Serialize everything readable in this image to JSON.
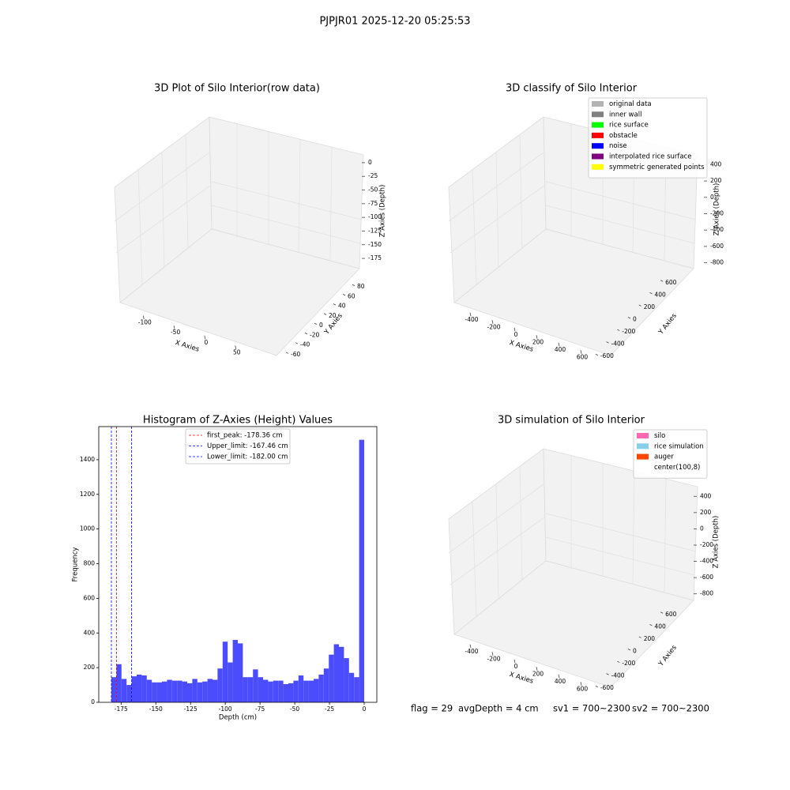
{
  "title": "PJPJR01 2025-12-20 05:25:53",
  "chart_data": [
    {
      "type": "scatter3d",
      "title": "3D Plot of Silo Interior(row data)",
      "xlabel": "X Axies",
      "ylabel": "Y Axies",
      "zlabel": "Z Axies (Depth)",
      "xlim": [
        -130,
        80
      ],
      "xticks": [
        -100,
        -50,
        0,
        50
      ],
      "ylim": [
        -65,
        90
      ],
      "yticks": [
        -60,
        -40,
        -20,
        0,
        20,
        40,
        60,
        80
      ],
      "zlim": [
        -185,
        10
      ],
      "zticks": [
        0,
        -25,
        -50,
        -75,
        -100,
        -125,
        -150,
        -175
      ]
    },
    {
      "type": "classify3d",
      "title": "3D classify of Silo Interior",
      "xlabel": "X Axies",
      "ylabel": "Y Axies",
      "zlabel": "Z Axies (Depth)",
      "xlim": [
        -500,
        700
      ],
      "xticks": [
        -400,
        -200,
        0,
        200,
        400,
        600
      ],
      "ylim": [
        -700,
        700
      ],
      "yticks": [
        -600,
        -400,
        -200,
        0,
        200,
        400,
        600
      ],
      "zlim": [
        -900,
        500
      ],
      "zticks": [
        -800,
        -600,
        -400,
        -200,
        0,
        200,
        400
      ],
      "legend": [
        {
          "name": "original data",
          "color": "#b3b3b3"
        },
        {
          "name": "inner wall",
          "color": "#808080"
        },
        {
          "name": "rice surface",
          "color": "#00ff00"
        },
        {
          "name": "obstacle",
          "color": "#ff0000"
        },
        {
          "name": "noise",
          "color": "#0000ff"
        },
        {
          "name": "interpolated rice surface",
          "color": "#800080"
        },
        {
          "name": "symmetric generated points",
          "color": "#ffff00"
        }
      ]
    },
    {
      "type": "histogram",
      "title": "Histogram of Z-Axies (Height) Values",
      "xlabel": "Depth (cm)",
      "ylabel": "Frequency",
      "color": "#4c4cff",
      "bins": [
        -182,
        -178.36,
        -174.72,
        -171.08,
        -167.44,
        -163.8,
        -160.16,
        -156.52,
        -152.88,
        -149.24,
        -145.6,
        -141.96,
        -138.32,
        -134.68,
        -131.04,
        -127.4,
        -123.76,
        -120.12,
        -116.48,
        -112.84,
        -109.2,
        -105.56,
        -101.92,
        -98.28,
        -94.64,
        -91,
        -87.36,
        -83.72,
        -80.08,
        -76.44,
        -72.8,
        -69.16,
        -65.52,
        -61.88,
        -58.24,
        -54.6,
        -50.96,
        -47.32,
        -43.68,
        -40.04,
        -36.4,
        -32.76,
        -29.12,
        -25.48,
        -21.84,
        -18.2,
        -14.56,
        -10.92,
        -7.28,
        -3.64,
        0
      ],
      "values": [
        145,
        220,
        135,
        100,
        150,
        160,
        155,
        130,
        115,
        115,
        120,
        130,
        125,
        125,
        120,
        110,
        135,
        115,
        120,
        135,
        130,
        195,
        350,
        230,
        360,
        340,
        145,
        145,
        190,
        145,
        130,
        120,
        125,
        125,
        105,
        110,
        125,
        155,
        125,
        125,
        135,
        160,
        195,
        275,
        335,
        320,
        255,
        170,
        145,
        1515
      ],
      "xlim": [
        -191.1,
        9.1
      ],
      "xticks": [
        -175,
        -150,
        -125,
        -100,
        -75,
        -50,
        -25,
        0
      ],
      "ylim": [
        0,
        1591
      ],
      "yticks": [
        0,
        200,
        400,
        600,
        800,
        1000,
        1200,
        1400
      ],
      "vlines": [
        {
          "label": "first_peak: -178.36 cm",
          "value": -178.36,
          "color": "#ff0000"
        },
        {
          "label": "Upper_limit: -167.46 cm",
          "value": -167.46,
          "color": "#0000ff"
        },
        {
          "label": "Lower_limit: -182.00 cm",
          "value": -182.0,
          "color": "#0000ff"
        }
      ]
    },
    {
      "type": "simulation3d",
      "title": "3D simulation of Silo Interior",
      "xlabel": "X Axies",
      "ylabel": "Y Axies",
      "zlabel": "Z Axies (Depth)",
      "xlim": [
        -500,
        700
      ],
      "xticks": [
        -400,
        -200,
        0,
        200,
        400,
        600
      ],
      "ylim": [
        -700,
        700
      ],
      "yticks": [
        -600,
        -400,
        -200,
        0,
        200,
        400,
        600
      ],
      "zlim": [
        -900,
        500
      ],
      "zticks": [
        -800,
        -600,
        -400,
        -200,
        0,
        200,
        400
      ],
      "legend": [
        {
          "name": "silo",
          "color": "#ff69b4"
        },
        {
          "name": "rice simulation",
          "color": "#87ceeb"
        },
        {
          "name": "auger",
          "color": "#ff4500"
        },
        {
          "name": "center(100,8)",
          "color": "#ffffff"
        }
      ]
    }
  ],
  "status": [
    "flag = 29",
    "avgDepth = 4 cm",
    "sv1 = 700~2300",
    "sv2 = 700~2300"
  ]
}
